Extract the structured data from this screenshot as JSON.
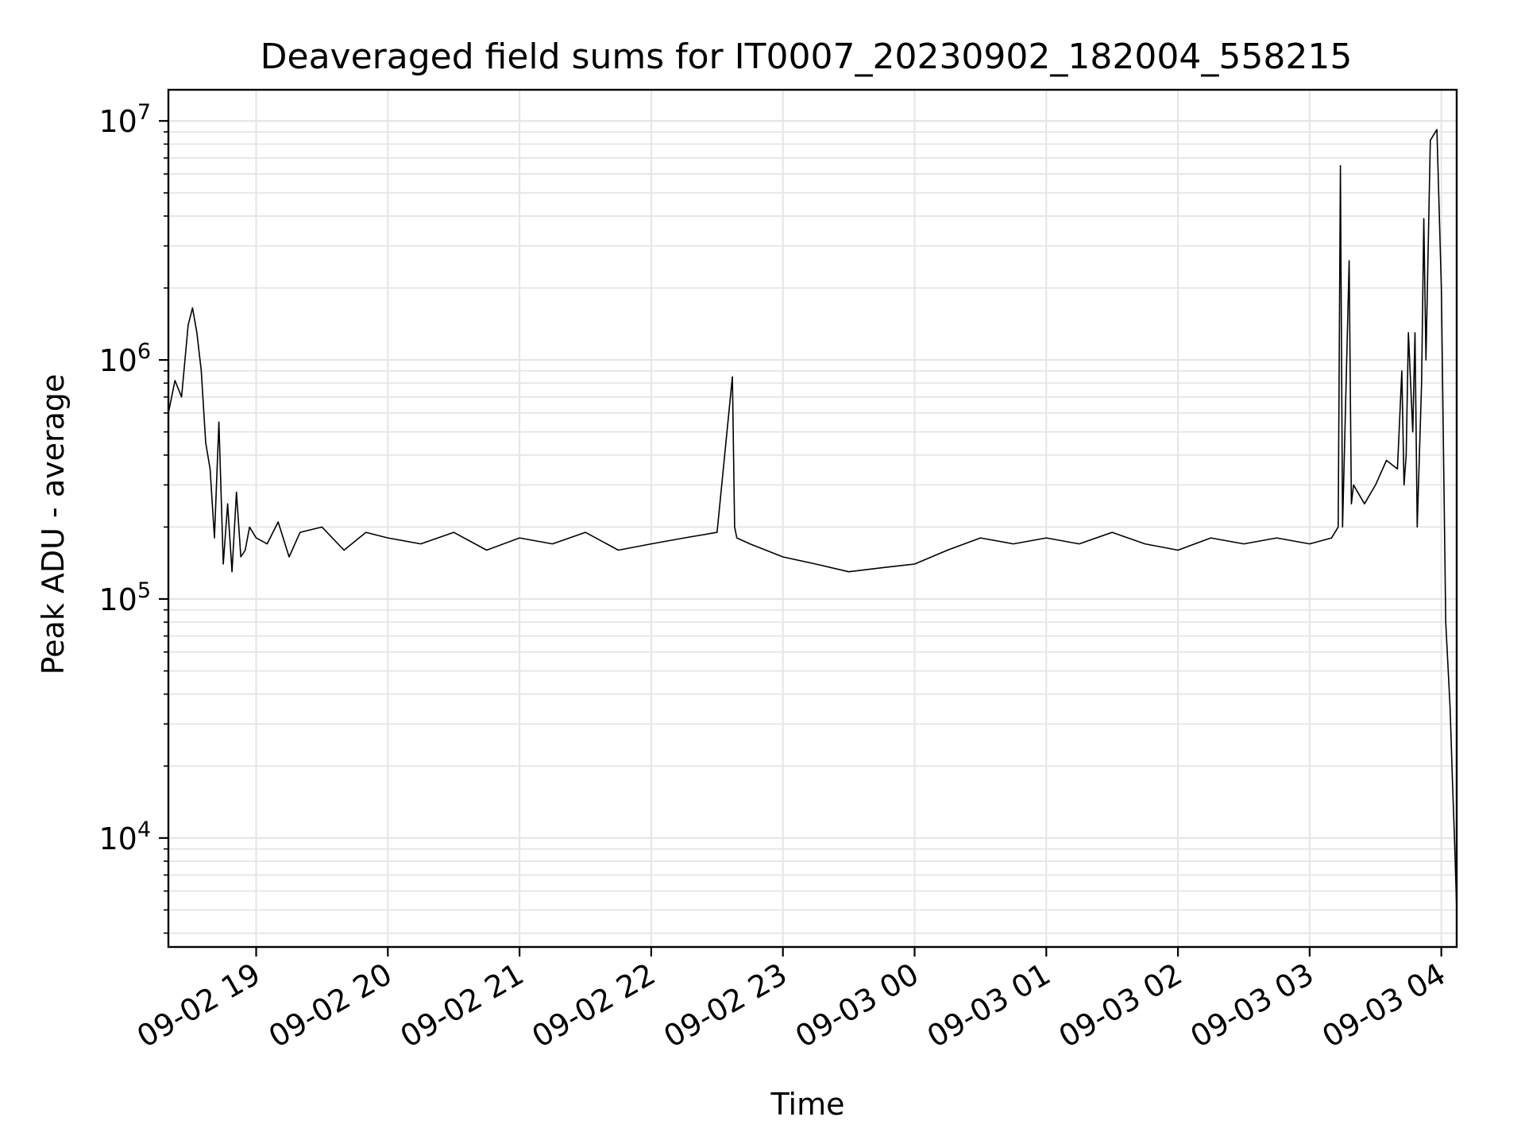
{
  "chart_data": {
    "type": "line",
    "title": "Deaveraged field sums for IT0007_20230902_182004_558215",
    "xlabel": "Time",
    "ylabel": "Peak ADU - average",
    "y_scale": "log",
    "ylim": [
      3500,
      13500000
    ],
    "xlim": [
      "09-02 18:20",
      "09-03 04:07"
    ],
    "grid": true,
    "line_color": "#000000",
    "grid_color": "#e5e5e5",
    "x_ticks": [
      {
        "value": "09-02 19:00",
        "label": "09-02 19"
      },
      {
        "value": "09-02 20:00",
        "label": "09-02 20"
      },
      {
        "value": "09-02 21:00",
        "label": "09-02 21"
      },
      {
        "value": "09-02 22:00",
        "label": "09-02 22"
      },
      {
        "value": "09-02 23:00",
        "label": "09-02 23"
      },
      {
        "value": "09-03 00:00",
        "label": "09-03 00"
      },
      {
        "value": "09-03 01:00",
        "label": "09-03 01"
      },
      {
        "value": "09-03 02:00",
        "label": "09-03 02"
      },
      {
        "value": "09-03 03:00",
        "label": "09-03 03"
      },
      {
        "value": "09-03 04:00",
        "label": "09-03 04"
      }
    ],
    "y_ticks": [
      {
        "value": 10000,
        "base": "10",
        "exp": "4"
      },
      {
        "value": 100000,
        "base": "10",
        "exp": "5"
      },
      {
        "value": 1000000,
        "base": "10",
        "exp": "6"
      },
      {
        "value": 10000000,
        "base": "10",
        "exp": "7"
      }
    ],
    "series": [
      {
        "x": [
          "09-02 18:20",
          "09-02 18:23",
          "09-02 18:26",
          "09-02 18:29",
          "09-02 18:31",
          "09-02 18:33",
          "09-02 18:35",
          "09-02 18:37",
          "09-02 18:39",
          "09-02 18:41",
          "09-02 18:43",
          "09-02 18:45",
          "09-02 18:47",
          "09-02 18:49",
          "09-02 18:51",
          "09-02 18:53",
          "09-02 18:55",
          "09-02 18:57",
          "09-02 19:00",
          "09-02 19:05",
          "09-02 19:10",
          "09-02 19:15",
          "09-02 19:20",
          "09-02 19:30",
          "09-02 19:40",
          "09-02 19:50",
          "09-02 20:00",
          "09-02 20:15",
          "09-02 20:30",
          "09-02 20:45",
          "09-02 21:00",
          "09-02 21:15",
          "09-02 21:30",
          "09-02 21:45",
          "09-02 22:00",
          "09-02 22:15",
          "09-02 22:30",
          "09-02 22:37",
          "09-02 22:38",
          "09-02 22:39",
          "09-02 22:45",
          "09-02 23:00",
          "09-02 23:15",
          "09-02 23:30",
          "09-02 23:45",
          "09-03 00:00",
          "09-03 00:15",
          "09-03 00:30",
          "09-03 00:45",
          "09-03 01:00",
          "09-03 01:15",
          "09-03 01:30",
          "09-03 01:45",
          "09-03 02:00",
          "09-03 02:15",
          "09-03 02:30",
          "09-03 02:45",
          "09-03 03:00",
          "09-03 03:10",
          "09-03 03:13",
          "09-03 03:14",
          "09-03 03:15",
          "09-03 03:18",
          "09-03 03:19",
          "09-03 03:20",
          "09-03 03:25",
          "09-03 03:30",
          "09-03 03:35",
          "09-03 03:40",
          "09-03 03:42",
          "09-03 03:43",
          "09-03 03:44",
          "09-03 03:45",
          "09-03 03:47",
          "09-03 03:48",
          "09-03 03:49",
          "09-03 03:51",
          "09-03 03:52",
          "09-03 03:53",
          "09-03 03:55",
          "09-03 03:58",
          "09-03 04:00",
          "09-03 04:02",
          "09-03 04:04",
          "09-03 04:05",
          "09-03 04:06",
          "09-03 04:07"
        ],
        "y": [
          600000,
          820000,
          700000,
          1400000,
          1650000,
          1300000,
          900000,
          450000,
          350000,
          180000,
          550000,
          140000,
          250000,
          130000,
          280000,
          150000,
          160000,
          200000,
          180000,
          170000,
          210000,
          150000,
          190000,
          200000,
          160000,
          190000,
          180000,
          170000,
          190000,
          160000,
          180000,
          170000,
          190000,
          160000,
          170000,
          180000,
          190000,
          850000,
          200000,
          180000,
          170000,
          150000,
          140000,
          130000,
          135000,
          140000,
          160000,
          180000,
          170000,
          180000,
          170000,
          190000,
          170000,
          160000,
          180000,
          170000,
          180000,
          170000,
          180000,
          200000,
          6500000,
          200000,
          2600000,
          250000,
          300000,
          250000,
          300000,
          380000,
          350000,
          900000,
          300000,
          400000,
          1300000,
          500000,
          1300000,
          200000,
          800000,
          3900000,
          1000000,
          8300000,
          9200000,
          2000000,
          80000,
          35000,
          18000,
          10000,
          5000
        ]
      }
    ]
  }
}
